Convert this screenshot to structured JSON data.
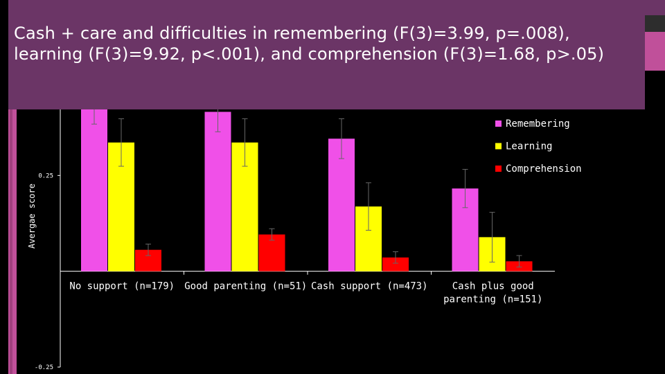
{
  "slide": {
    "title": "Cash + care and difficulties in remembering (F(3)=3.99, p=.008), learning (F(3)=9.92, p<.001), and comprehension (F(3)=1.68, p>.05)",
    "background_color": "#000000",
    "title_bg_color": "#6b3566"
  },
  "chart_data": {
    "type": "bar",
    "title": "",
    "xlabel": "",
    "ylabel": "Avergae score",
    "ylim": [
      -0.25,
      0.5
    ],
    "yticks": [
      {
        "value": 0.25,
        "label": "0.25"
      },
      {
        "value": -0.25,
        "label": "-0.25"
      }
    ],
    "categories": [
      [
        "No support (n=179)"
      ],
      [
        "Good parenting (n=51)"
      ],
      [
        "Cash support (n=473)"
      ],
      [
        "Cash plus good",
        "parenting (n=151)"
      ]
    ],
    "series": [
      {
        "name": "Remembering",
        "color": "#f050e8",
        "values": [
          0.436,
          0.416,
          0.346,
          0.216
        ],
        "errors": [
          0.052,
          0.052,
          0.052,
          0.05
        ]
      },
      {
        "name": "Learning",
        "color": "#ffff00",
        "values": [
          0.336,
          0.336,
          0.169,
          0.089
        ],
        "errors": [
          0.062,
          0.062,
          0.062,
          0.065
        ]
      },
      {
        "name": "Comprehension",
        "color": "#ff0000",
        "values": [
          0.056,
          0.096,
          0.036,
          0.026
        ],
        "errors": [
          0.015,
          0.015,
          0.015,
          0.015
        ]
      }
    ],
    "legend_position": "top-right",
    "grid": false
  }
}
